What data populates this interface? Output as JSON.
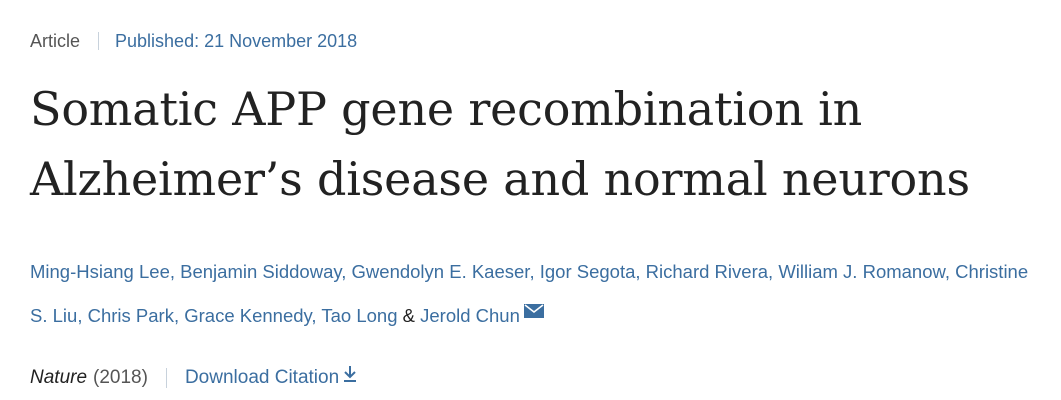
{
  "meta": {
    "article_type": "Article",
    "published": "Published: 21 November 2018"
  },
  "title": {
    "line1": "Somatic APP gene recombination in",
    "line2": "Alzheimer’s disease and normal neurons"
  },
  "authors": [
    "Ming-Hsiang Lee",
    "Benjamin Siddoway",
    "Gwendolyn E. Kaeser",
    "Igor Segota",
    "Richard Rivera",
    "William J. Romanow",
    "Christine S. Liu",
    "Chris Park",
    "Grace Kennedy",
    "Tao Long",
    "Jerold Chun"
  ],
  "author_separators": {
    "comma": ", ",
    "ampersand": " & "
  },
  "icons": {
    "mail": "mail-icon",
    "download": "download-icon"
  },
  "journal": {
    "name": "Nature",
    "year": "(2018)",
    "download_label": "Download Citation"
  },
  "colors": {
    "link": "#3b6ea0",
    "text": "#222222",
    "muted": "#555555",
    "separator": "#c8d2dc"
  }
}
